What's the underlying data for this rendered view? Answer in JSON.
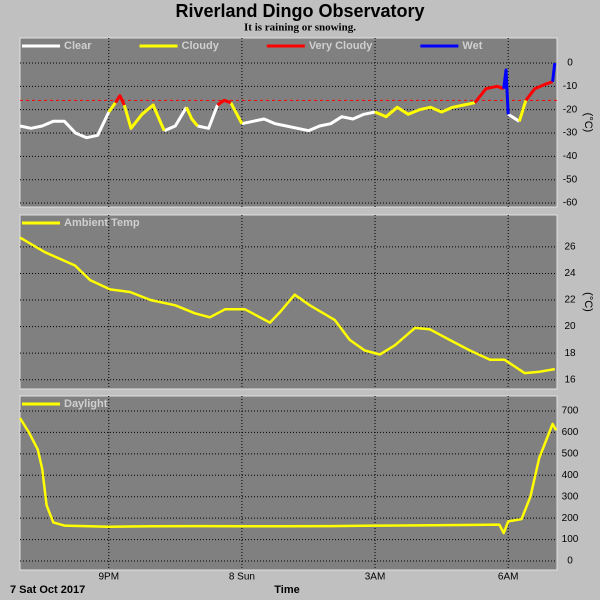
{
  "chart_data": [
    {
      "type": "line",
      "title": "Riverland Dingo Observatory",
      "subtitle": "It is raining or snowing.",
      "ylabel": "(°C)",
      "x": [
        19,
        19.25,
        19.5,
        19.75,
        20,
        20.25,
        20.5,
        20.75,
        21,
        21.15,
        21.25,
        21.35,
        21.5,
        21.75,
        22,
        22.25,
        22.5,
        22.75,
        22.87,
        23,
        23.25,
        23.45,
        23.6,
        23.75,
        24,
        24.25,
        24.5,
        24.75,
        25,
        25.25,
        25.5,
        25.75,
        26,
        26.25,
        26.5,
        26.75,
        27,
        27.25,
        27.5,
        27.75,
        28,
        28.25,
        28.5,
        28.75,
        29,
        29.25,
        29.5,
        29.75,
        29.9,
        29.95,
        30,
        30.25,
        30.4,
        30.6,
        30.85,
        31,
        31.05
      ],
      "series": [
        {
          "name": "Clear",
          "color": "#ffffff",
          "values": [
            -27,
            -28,
            -27,
            -25,
            -25,
            -30,
            -32,
            -31,
            -21,
            null,
            null,
            null,
            null,
            null,
            null,
            -29,
            -27,
            -19,
            null,
            -27,
            -28,
            -18,
            null,
            null,
            -26,
            -25,
            -24,
            -26,
            -27,
            -28,
            -29,
            -27,
            -26,
            -23,
            -24,
            -22,
            -21,
            null,
            null,
            null,
            null,
            null,
            null,
            null,
            null,
            null,
            null,
            null,
            null,
            null,
            -22,
            -25,
            null,
            null,
            null,
            null,
            null
          ]
        },
        {
          "name": "Cloudy",
          "color": "#ffff00",
          "values": [
            null,
            null,
            null,
            null,
            null,
            null,
            null,
            null,
            -21,
            -17,
            null,
            -18,
            -28,
            -22,
            -18,
            -29,
            null,
            -19,
            -24,
            -27,
            null,
            null,
            null,
            -17,
            -26,
            null,
            null,
            null,
            null,
            null,
            null,
            null,
            null,
            null,
            null,
            null,
            -21,
            -23,
            -19,
            -22,
            -20,
            -19,
            -21,
            -19,
            -18,
            -17,
            null,
            null,
            null,
            null,
            null,
            -25,
            -16,
            null,
            null,
            null,
            null
          ]
        },
        {
          "name": "Very Cloudy",
          "color": "#ff0000",
          "values": [
            null,
            null,
            null,
            null,
            null,
            null,
            null,
            null,
            null,
            -17,
            -14,
            -18,
            null,
            null,
            null,
            null,
            null,
            null,
            null,
            null,
            null,
            -18,
            -16,
            -17,
            null,
            null,
            null,
            null,
            null,
            null,
            null,
            null,
            null,
            null,
            null,
            null,
            null,
            null,
            null,
            null,
            null,
            null,
            null,
            null,
            null,
            -17,
            -11,
            -10,
            -11,
            null,
            null,
            null,
            -16,
            -11,
            -9,
            -8,
            null
          ]
        },
        {
          "name": "Wet",
          "color": "#0000ff",
          "values": [
            null,
            null,
            null,
            null,
            null,
            null,
            null,
            null,
            null,
            null,
            null,
            null,
            null,
            null,
            null,
            null,
            null,
            null,
            null,
            null,
            null,
            null,
            null,
            null,
            null,
            null,
            null,
            null,
            null,
            null,
            null,
            null,
            null,
            null,
            null,
            null,
            null,
            null,
            null,
            null,
            null,
            null,
            null,
            null,
            null,
            null,
            null,
            null,
            -11,
            -3,
            -22,
            null,
            null,
            null,
            null,
            -8,
            0
          ]
        }
      ],
      "ref_line": {
        "value": -16,
        "color": "#ff0000"
      },
      "xlim": [
        19,
        31.1
      ],
      "xticks": [
        21,
        24,
        27,
        30
      ],
      "ylim": [
        -61.7,
        10.7
      ],
      "yticks": [
        0,
        -10,
        -20,
        -30,
        -40,
        -50,
        -60
      ],
      "grid": true
    },
    {
      "type": "line",
      "ylabel": "(°C)",
      "x": [
        19,
        19.56,
        20.24,
        20.58,
        21.03,
        21.48,
        21.94,
        22.5,
        22.94,
        23.28,
        23.62,
        24.07,
        24.63,
        24.86,
        25.19,
        25.53,
        26.09,
        26.43,
        26.77,
        27.11,
        27.45,
        27.9,
        28.23,
        28.68,
        29.14,
        29.59,
        29.92,
        30.37,
        30.71,
        31.05
      ],
      "series": [
        {
          "name": "Ambient Temp",
          "color": "#ffff00",
          "values": [
            26.7,
            25.6,
            24.6,
            23.5,
            22.8,
            22.6,
            22.0,
            21.6,
            21.0,
            20.7,
            21.3,
            21.3,
            20.3,
            21.1,
            22.4,
            21.6,
            20.5,
            19.0,
            18.2,
            17.9,
            18.6,
            19.9,
            19.8,
            19.0,
            18.2,
            17.5,
            17.5,
            16.5,
            16.6,
            16.8
          ]
        }
      ],
      "xlim": [
        19,
        31.1
      ],
      "xticks": [
        21,
        24,
        27,
        30
      ],
      "ylim": [
        15.3,
        28.4
      ],
      "yticks": [
        16,
        18,
        20,
        22,
        24,
        26
      ],
      "grid": true
    },
    {
      "type": "line",
      "xlabel": "Time",
      "date_label": "7 Sat Oct 2017",
      "x": [
        19,
        19.2,
        19.4,
        19.5,
        19.6,
        19.75,
        20,
        21,
        22,
        23,
        24,
        25,
        26,
        27,
        28,
        29,
        29.8,
        29.9,
        30,
        30.3,
        30.5,
        30.7,
        30.85,
        31,
        31.08
      ],
      "series": [
        {
          "name": "Daylight",
          "color": "#ffff00",
          "values": [
            667,
            600,
            520,
            430,
            260,
            180,
            165,
            160,
            162,
            163,
            162,
            162,
            163,
            165,
            166,
            168,
            170,
            130,
            185,
            195,
            300,
            480,
            560,
            640,
            610
          ]
        }
      ],
      "xlim": [
        19,
        31.1
      ],
      "xticks": [
        {
          "value": 21,
          "label": "9PM"
        },
        {
          "value": 24,
          "label": "8 Sun"
        },
        {
          "value": 27,
          "label": "3AM"
        },
        {
          "value": 30,
          "label": "6AM"
        }
      ],
      "ylim": [
        -42,
        770
      ],
      "yticks": [
        0,
        100,
        200,
        300,
        400,
        500,
        600,
        700
      ],
      "grid": true
    }
  ]
}
